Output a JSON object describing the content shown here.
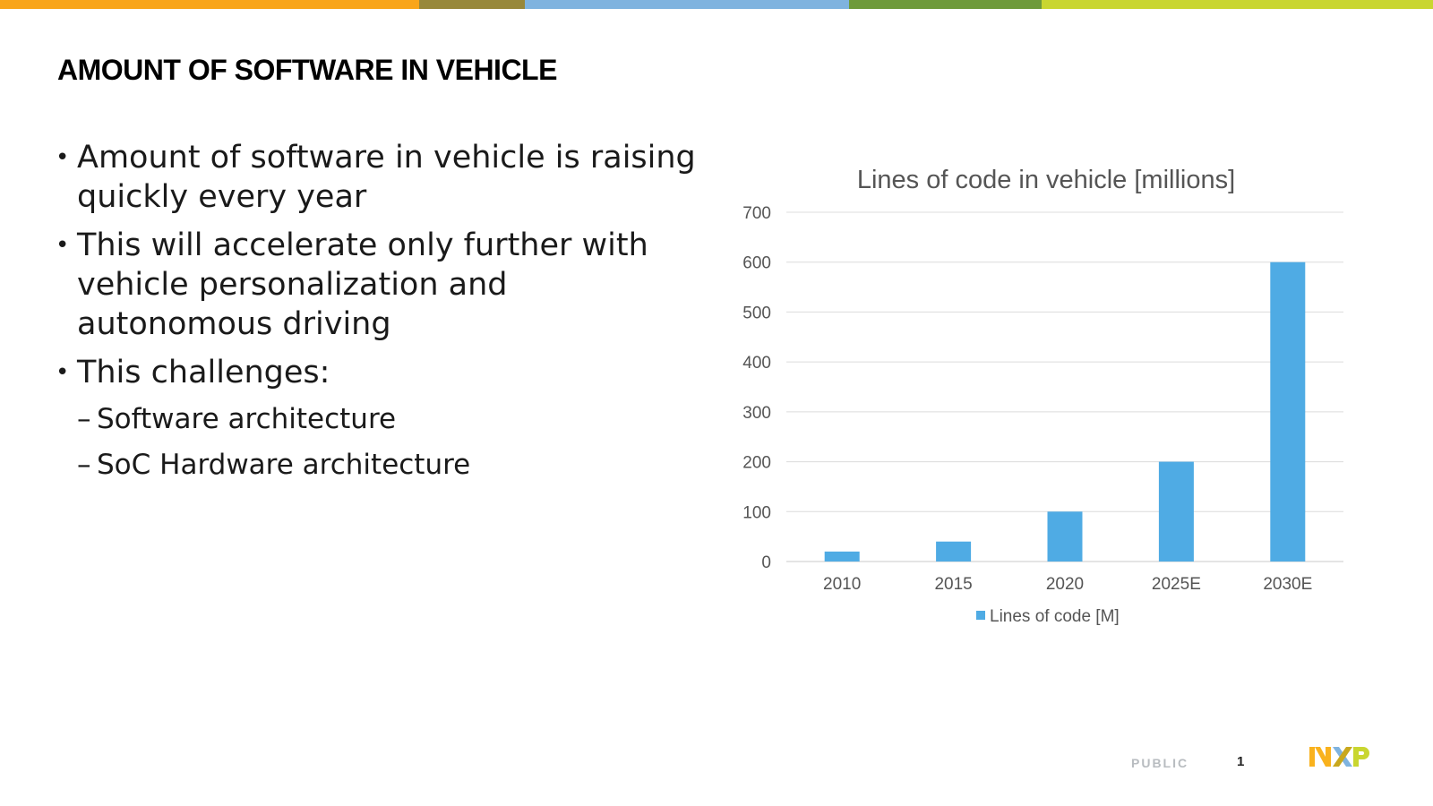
{
  "topbar_colors": [
    "#f9a51a",
    "#98883a",
    "#7fb3df",
    "#6e9a3a",
    "#c9d630"
  ],
  "slide": {
    "title": "AMOUNT OF SOFTWARE IN VEHICLE",
    "bullets": [
      "Amount of software in vehicle is raising quickly every year",
      "This will accelerate only further with vehicle personalization and autonomous driving",
      "This challenges:"
    ],
    "sub_bullets": [
      "Software architecture",
      "SoC Hardware architecture"
    ],
    "bullet_symbol": "•",
    "dash_symbol": "–"
  },
  "chart_data": {
    "type": "bar",
    "title": "Lines of code in vehicle [millions]",
    "categories": [
      "2010",
      "2015",
      "2020",
      "2025E",
      "2030E"
    ],
    "series": [
      {
        "name": "Lines of code [M]",
        "values": [
          20,
          40,
          100,
          200,
          600
        ],
        "color": "#4fabe4"
      }
    ],
    "ylim": [
      0,
      700
    ],
    "yticks": [
      0,
      100,
      200,
      300,
      400,
      500,
      600,
      700
    ],
    "grid": true,
    "legend": "bottom"
  },
  "footer": {
    "classification": "PUBLIC",
    "page": "1"
  },
  "logo": {
    "text": "NXP",
    "colors": [
      "#f9b21d",
      "#7fb3df",
      "#c9d630"
    ]
  }
}
